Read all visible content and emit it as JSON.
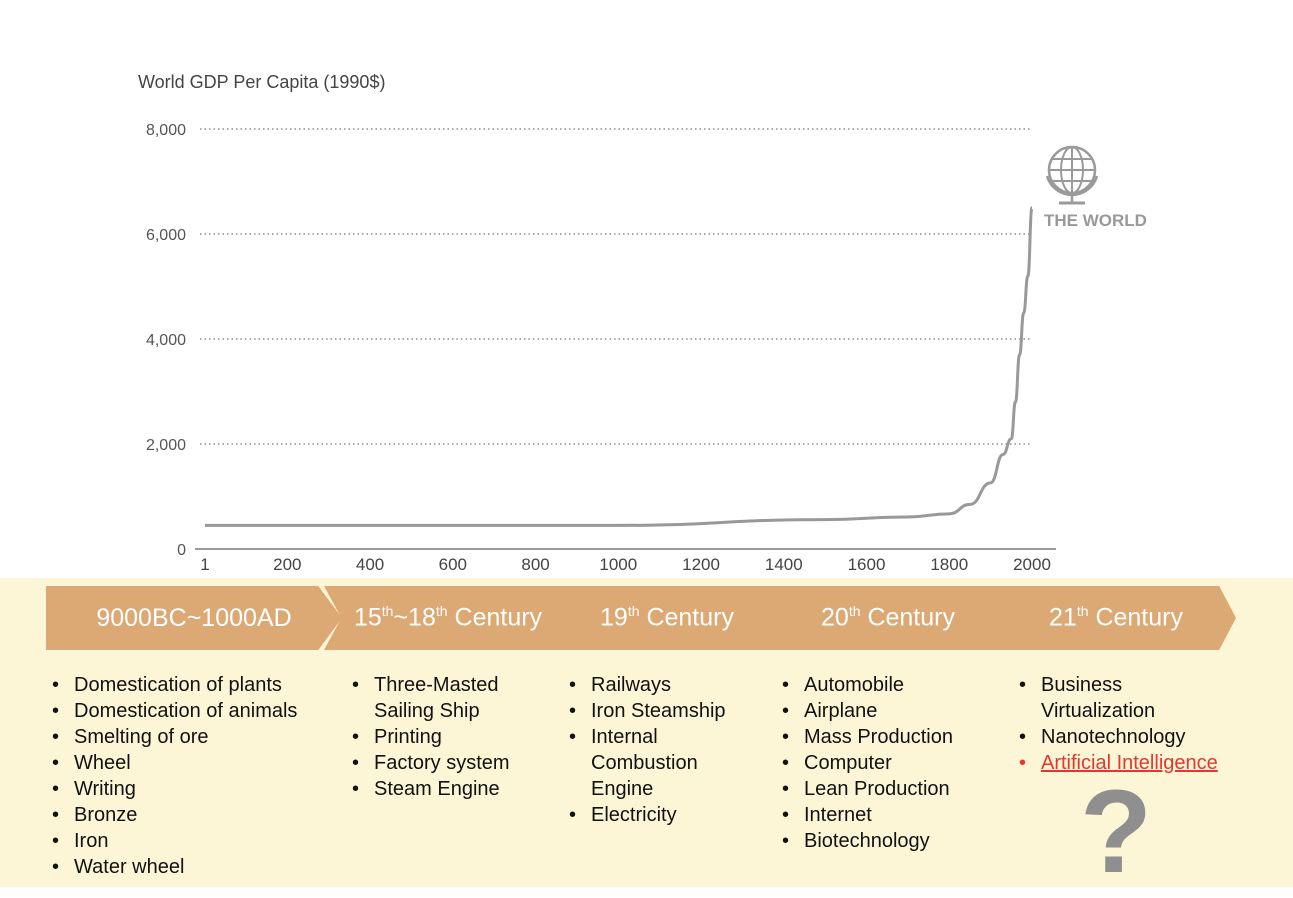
{
  "chart_data": {
    "type": "line",
    "title": "World GDP Per Capita (1990$)",
    "xlabel": "",
    "ylabel": "",
    "x_ticks": [
      "1",
      "200",
      "400",
      "600",
      "800",
      "1000",
      "1200",
      "1400",
      "1600",
      "1800",
      "2000"
    ],
    "y_ticks": [
      "0",
      "2,000",
      "4,000",
      "6,000",
      "8,000"
    ],
    "xlim": [
      1,
      2000
    ],
    "ylim": [
      0,
      8000
    ],
    "grid": "horizontal dotted",
    "annotation": "THE WORLD",
    "series": [
      {
        "color": "#999999",
        "points": [
          [
            1,
            450
          ],
          [
            1000,
            450
          ],
          [
            1500,
            560
          ],
          [
            1700,
            610
          ],
          [
            1800,
            670
          ],
          [
            1850,
            850
          ],
          [
            1900,
            1260
          ],
          [
            1930,
            1800
          ],
          [
            1950,
            2100
          ],
          [
            1960,
            2800
          ],
          [
            1970,
            3700
          ],
          [
            1980,
            4500
          ],
          [
            1990,
            5200
          ],
          [
            2000,
            6500
          ]
        ]
      }
    ]
  },
  "timeline": {
    "eras": [
      "9000BC~1000AD",
      "15th~18th Century",
      "19th Century",
      "20th Century",
      "21th Century"
    ],
    "columns": [
      [
        "Domestication of plants",
        "Domestication of animals",
        "Smelting of ore",
        "Wheel",
        "Writing",
        "Bronze",
        "Iron",
        "Water wheel"
      ],
      [
        "Three-Masted Sailing Ship",
        "Printing",
        "Factory system",
        "Steam Engine"
      ],
      [
        "Railways",
        "Iron Steamship",
        "Internal Combustion Engine",
        "Electricity"
      ],
      [
        "Automobile",
        "Airplane",
        "Mass Production",
        "Computer",
        "Lean Production",
        "Internet",
        "Biotechnology"
      ],
      [
        "Business Virtualization",
        "Nanotechnology",
        "Artificial Intelligence"
      ]
    ],
    "highlight_color": "#e8362f",
    "question_mark": "?"
  }
}
